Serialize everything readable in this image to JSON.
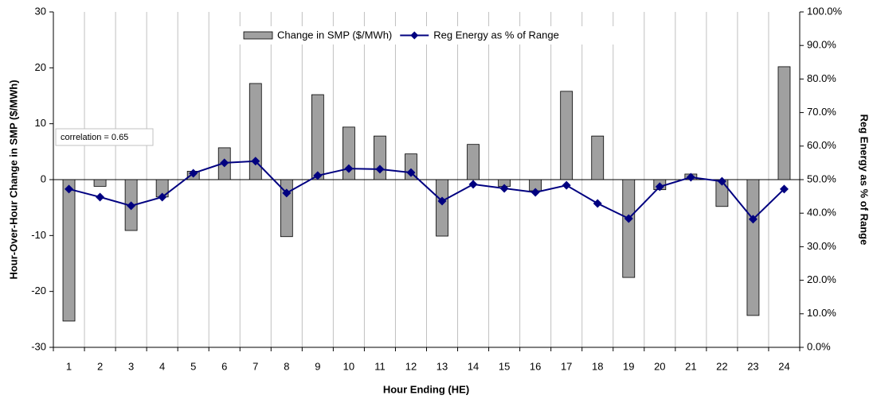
{
  "chart_data": {
    "type": "combo",
    "xlabel": "Hour Ending (HE)",
    "ylabel": "Hour-Over-Hour Change in SMP ($/MWh)",
    "y2label": "Reg Energy as % of Range",
    "annotation": "correlation = 0.65",
    "categories": [
      "1",
      "2",
      "3",
      "4",
      "5",
      "6",
      "7",
      "8",
      "9",
      "10",
      "11",
      "12",
      "13",
      "14",
      "15",
      "16",
      "17",
      "18",
      "19",
      "20",
      "21",
      "22",
      "23",
      "24"
    ],
    "series": [
      {
        "name": "Change in SMP ($/MWh)",
        "type": "bar",
        "color": "#a0a0a0",
        "values": [
          -25.3,
          -1.2,
          -9.1,
          -3.1,
          1.5,
          5.7,
          17.2,
          -10.2,
          15.2,
          9.4,
          7.8,
          4.6,
          -10.1,
          6.3,
          -1.2,
          -2.0,
          15.8,
          7.8,
          -17.5,
          -1.8,
          1.0,
          -4.8,
          -24.3,
          20.2
        ]
      },
      {
        "name": "Reg Energy as % of Range",
        "type": "line",
        "axis": "y2",
        "color": "#000080",
        "values": [
          47.2,
          44.8,
          42.2,
          44.8,
          51.9,
          55.0,
          55.5,
          46.0,
          51.2,
          53.3,
          53.1,
          52.1,
          43.6,
          48.6,
          47.4,
          46.2,
          48.3,
          42.9,
          38.4,
          47.9,
          50.7,
          49.5,
          38.2,
          47.2
        ]
      }
    ],
    "ylim": [
      -30,
      30
    ],
    "yticks": [
      -30,
      -20,
      -10,
      0,
      10,
      20,
      30
    ],
    "y2lim": [
      0,
      100
    ],
    "y2ticks": [
      {
        "value": 0,
        "label": "0.0%"
      },
      {
        "value": 10,
        "label": "10.0%"
      },
      {
        "value": 20,
        "label": "20.0%"
      },
      {
        "value": 30,
        "label": "30.0%"
      },
      {
        "value": 40,
        "label": "40.0%"
      },
      {
        "value": 50,
        "label": "50.0%"
      },
      {
        "value": 60,
        "label": "60.0%"
      },
      {
        "value": 70,
        "label": "70.0%"
      },
      {
        "value": 80,
        "label": "80.0%"
      },
      {
        "value": 90,
        "label": "90.0%"
      },
      {
        "value": 100,
        "label": "100.0%"
      }
    ],
    "legend": "top"
  }
}
